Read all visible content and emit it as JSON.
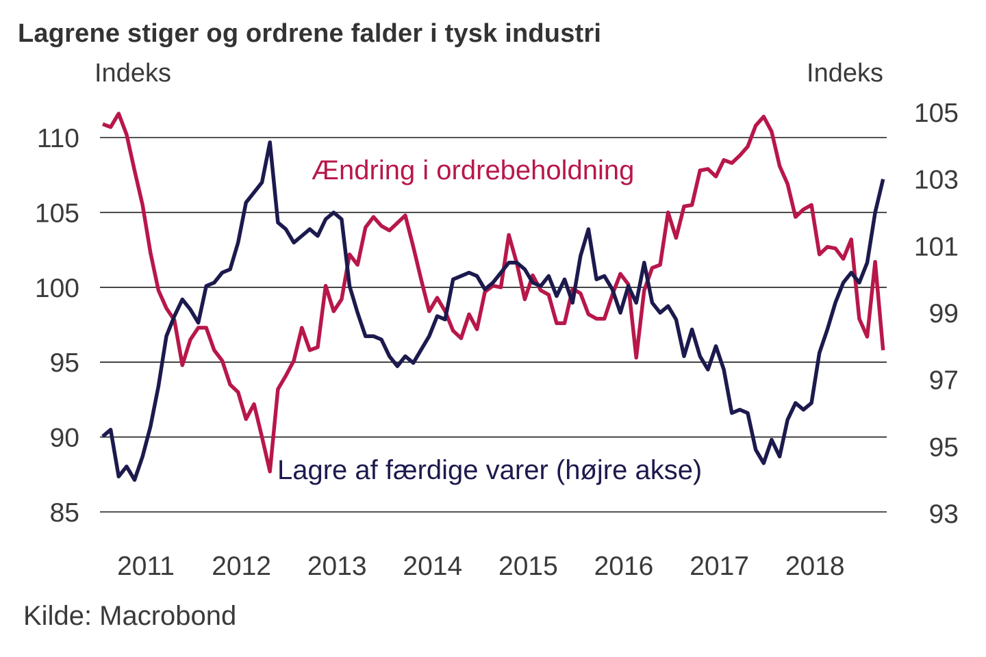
{
  "chart_data": {
    "type": "line",
    "title": "Lagrene stiger og ordrene falder i tysk industri",
    "source": "Kilde: Macrobond",
    "left_axis": {
      "label": "Indeks",
      "ticks": [
        85,
        90,
        95,
        100,
        105,
        110
      ],
      "ylim": [
        85,
        110
      ]
    },
    "right_axis": {
      "label": "Indeks",
      "ticks": [
        93,
        95,
        97,
        99,
        101,
        103,
        105
      ],
      "ylim": [
        93,
        105
      ]
    },
    "x_ticks": [
      "2011",
      "2012",
      "2013",
      "2014",
      "2015",
      "2016",
      "2017",
      "2018"
    ],
    "x_start": "2011-01",
    "frequency": "monthly",
    "grid": true,
    "series": [
      {
        "name": "Ændring i ordrebeholdning",
        "axis": "left",
        "color": "#b8174a",
        "values": [
          110.9,
          110.7,
          111.6,
          110.2,
          107.8,
          105.5,
          102.3,
          99.8,
          98.6,
          97.8,
          94.8,
          96.5,
          97.3,
          97.3,
          95.8,
          95.1,
          93.5,
          93.0,
          91.2,
          92.2,
          90.0,
          87.7,
          93.2,
          94.1,
          95.1,
          97.3,
          95.8,
          96.0,
          100.1,
          98.4,
          99.2,
          102.2,
          101.5,
          104.0,
          104.7,
          104.1,
          103.8,
          104.3,
          104.8,
          102.7,
          100.5,
          98.4,
          99.3,
          98.4,
          97.1,
          96.6,
          98.2,
          97.2,
          99.7,
          100.1,
          100.0,
          103.5,
          101.6,
          99.2,
          100.8,
          99.8,
          99.5,
          97.6,
          97.6,
          99.9,
          99.6,
          98.2,
          97.9,
          97.9,
          99.5,
          100.9,
          100.2,
          95.3,
          99.8,
          101.3,
          101.5,
          105.0,
          103.3,
          105.4,
          105.5,
          107.8,
          107.9,
          107.4,
          108.5,
          108.3,
          108.8,
          109.4,
          110.8,
          111.4,
          110.4,
          108.1,
          106.9,
          104.7,
          105.2,
          105.5,
          102.2,
          102.7,
          102.6,
          101.9,
          103.2,
          97.9,
          96.7,
          101.7,
          95.8
        ]
      },
      {
        "name": "Lagre af færdige varer (højre akse)",
        "axis": "right",
        "color": "#1c1a4d",
        "values": [
          95.3,
          95.5,
          94.1,
          94.4,
          94.0,
          94.7,
          95.6,
          96.8,
          98.3,
          98.9,
          99.4,
          99.1,
          98.7,
          99.8,
          99.9,
          100.2,
          100.3,
          101.1,
          102.3,
          102.6,
          102.9,
          104.1,
          101.7,
          101.5,
          101.1,
          101.3,
          101.5,
          101.3,
          101.8,
          102.0,
          101.8,
          99.8,
          99.0,
          98.3,
          98.3,
          98.2,
          97.7,
          97.4,
          97.7,
          97.5,
          97.9,
          98.3,
          98.9,
          98.8,
          100.0,
          100.1,
          100.2,
          100.1,
          99.7,
          99.9,
          100.2,
          100.5,
          100.5,
          100.3,
          99.9,
          99.8,
          100.1,
          99.5,
          100.0,
          99.3,
          100.7,
          101.5,
          100.0,
          100.1,
          99.7,
          99.0,
          99.8,
          99.3,
          100.5,
          99.3,
          99.0,
          99.2,
          98.8,
          97.7,
          98.5,
          97.7,
          97.3,
          98.0,
          97.3,
          96.0,
          96.1,
          96.0,
          94.9,
          94.5,
          95.2,
          94.7,
          95.8,
          96.3,
          96.1,
          96.3,
          97.8,
          98.5,
          99.3,
          99.9,
          100.2,
          99.9,
          100.5,
          102.0,
          103.0
        ]
      }
    ]
  }
}
